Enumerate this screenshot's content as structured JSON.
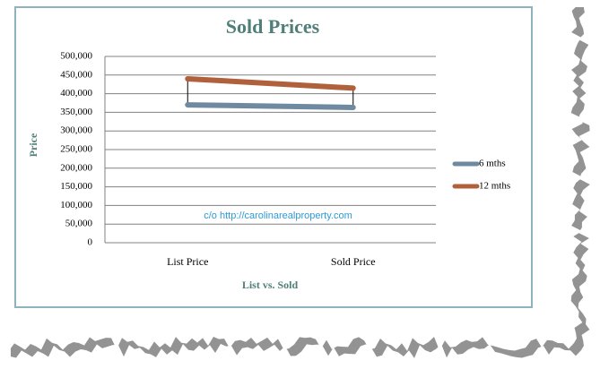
{
  "chart_data": {
    "type": "line",
    "title": "Sold Prices",
    "y_label": "Price",
    "x_label": "List vs. Sold",
    "annotation": "c/o  http://carolinarealproperty.com",
    "categories": [
      "List Price",
      "Sold Price"
    ],
    "series": [
      {
        "name": "6 mths",
        "color": "#6f8aa0",
        "values": [
          370000,
          363000
        ]
      },
      {
        "name": "12 mths",
        "color": "#b0603a",
        "values": [
          440000,
          415000
        ]
      }
    ],
    "ylim": [
      0,
      500000
    ],
    "yticks": [
      0,
      {
        "value": 50000,
        "label": "50,000"
      },
      {
        "value": 100000,
        "label": "100,000"
      },
      {
        "value": 150000,
        "label": "150,000"
      },
      {
        "value": 200000,
        "label": "200,000"
      },
      {
        "value": 250000,
        "label": "250,000"
      },
      {
        "value": 300000,
        "label": "300,000"
      },
      {
        "value": 350000,
        "label": "350,000"
      },
      {
        "value": 400000,
        "label": "400,000"
      },
      {
        "value": 450000,
        "label": "450,000"
      },
      {
        "value": 500000,
        "label": "500,000"
      }
    ],
    "grid": true,
    "high_low_lines": true,
    "legend": "right"
  }
}
